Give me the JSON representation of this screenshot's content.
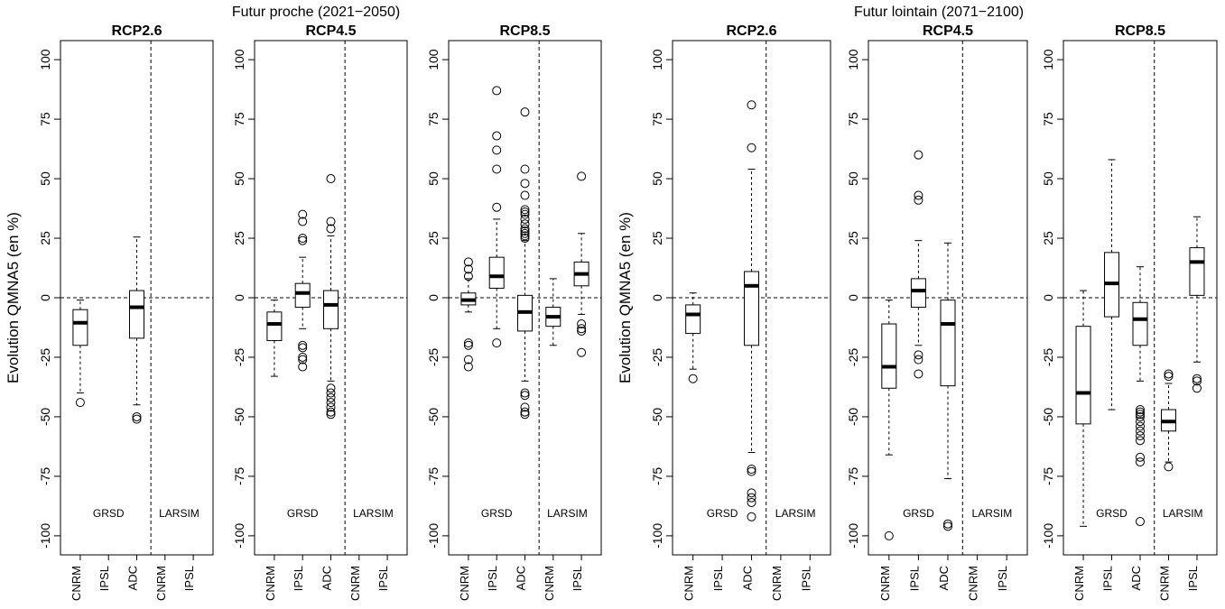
{
  "figure_titles": [
    "Futur proche (2021−2050)",
    "Futur lointain (2071−2100)"
  ],
  "chart_data": [
    {
      "type": "box",
      "title": "RCP2.6",
      "ylabel": "Evolution QMNA5 (en %)",
      "ylim": [
        -108,
        108
      ],
      "yticks": [
        -100,
        -75,
        -50,
        -25,
        0,
        25,
        50,
        75,
        100
      ],
      "reference_line": 0,
      "groups": [
        {
          "name": "GRSD",
          "categories": [
            "CNRM",
            "IPSL",
            "ADC"
          ],
          "stats": [
            {
              "low": -40,
              "q1": -20,
              "median": -10.5,
              "q3": -5,
              "high": -1,
              "outliers": [
                -44
              ]
            },
            null,
            {
              "low": -45,
              "q1": -17,
              "median": -4,
              "q3": 3,
              "high": 25.5,
              "outliers": [
                -50,
                -51
              ]
            }
          ]
        },
        {
          "name": "LARSIM",
          "categories": [
            "CNRM",
            "IPSL"
          ],
          "stats": [
            null,
            null
          ]
        }
      ]
    },
    {
      "type": "box",
      "title": "RCP4.5",
      "ylim": [
        -108,
        108
      ],
      "yticks": [
        -100,
        -75,
        -50,
        -25,
        0,
        25,
        50,
        75,
        100
      ],
      "reference_line": 0,
      "groups": [
        {
          "name": "GRSD",
          "categories": [
            "CNRM",
            "IPSL",
            "ADC"
          ],
          "stats": [
            {
              "low": -33,
              "q1": -18,
              "median": -11,
              "q3": -6,
              "high": -1,
              "outliers": []
            },
            {
              "low": -13,
              "q1": -4,
              "median": 2,
              "q3": 6,
              "high": 17,
              "outliers": [
                35,
                32,
                25,
                24,
                -20,
                -21,
                -25,
                -26,
                -29
              ]
            },
            {
              "low": -35,
              "q1": -13,
              "median": -3,
              "q3": 3,
              "high": 26,
              "outliers": [
                50,
                32,
                29,
                -38,
                -40,
                -42,
                -44,
                -46,
                -48,
                -49
              ]
            }
          ]
        },
        {
          "name": "LARSIM",
          "categories": [
            "CNRM",
            "IPSL"
          ],
          "stats": [
            null,
            null
          ]
        }
      ]
    },
    {
      "type": "box",
      "title": "RCP8.5",
      "ylim": [
        -108,
        108
      ],
      "yticks": [
        -100,
        -75,
        -50,
        -25,
        0,
        25,
        50,
        75,
        100
      ],
      "reference_line": 0,
      "groups": [
        {
          "name": "GRSD",
          "categories": [
            "CNRM",
            "IPSL",
            "ADC"
          ],
          "stats": [
            {
              "low": -6,
              "q1": -3,
              "median": -1,
              "q3": 2,
              "high": 8,
              "outliers": [
                15,
                12,
                9,
                -19,
                -20,
                -26,
                -29
              ]
            },
            {
              "low": -13,
              "q1": 4,
              "median": 9,
              "q3": 17,
              "high": 33,
              "outliers": [
                87,
                68,
                62,
                54,
                38,
                -19
              ]
            },
            {
              "low": -35,
              "q1": -14,
              "median": -6,
              "q3": 1,
              "high": 24,
              "outliers": [
                78,
                54,
                48,
                43,
                37,
                36,
                35,
                33,
                31,
                29,
                28,
                27,
                26,
                25,
                -40,
                -41,
                -46,
                -48,
                -49
              ]
            }
          ]
        },
        {
          "name": "LARSIM",
          "categories": [
            "CNRM",
            "IPSL"
          ],
          "stats": [
            {
              "low": -20,
              "q1": -12,
              "median": -8,
              "q3": -4,
              "high": 8,
              "outliers": []
            },
            {
              "low": -7,
              "q1": 5,
              "median": 10,
              "q3": 15,
              "high": 27,
              "outliers": [
                51,
                -11,
                -13,
                -14,
                -23
              ]
            }
          ]
        }
      ]
    },
    {
      "type": "box",
      "title": "RCP2.6",
      "ylabel": "Evolution QMNA5 (en %)",
      "ylim": [
        -108,
        108
      ],
      "yticks": [
        -100,
        -75,
        -50,
        -25,
        0,
        25,
        50,
        75,
        100
      ],
      "reference_line": 0,
      "groups": [
        {
          "name": "GRSD",
          "categories": [
            "CNRM",
            "IPSL",
            "ADC"
          ],
          "stats": [
            {
              "low": -30,
              "q1": -15,
              "median": -7,
              "q3": -3,
              "high": 2,
              "outliers": [
                -34
              ]
            },
            null,
            {
              "low": -65,
              "q1": -20,
              "median": 5,
              "q3": 11,
              "high": 54,
              "outliers": [
                81,
                63,
                -72,
                -73,
                -82,
                -84,
                -86,
                -92
              ]
            }
          ]
        },
        {
          "name": "LARSIM",
          "categories": [
            "CNRM",
            "IPSL"
          ],
          "stats": [
            null,
            null
          ]
        }
      ]
    },
    {
      "type": "box",
      "title": "RCP4.5",
      "ylim": [
        -108,
        108
      ],
      "yticks": [
        -100,
        -75,
        -50,
        -25,
        0,
        25,
        50,
        75,
        100
      ],
      "reference_line": 0,
      "groups": [
        {
          "name": "GRSD",
          "categories": [
            "CNRM",
            "IPSL",
            "ADC"
          ],
          "stats": [
            {
              "low": -66,
              "q1": -38,
              "median": -29,
              "q3": -11,
              "high": -1,
              "outliers": [
                -100
              ]
            },
            {
              "low": -20,
              "q1": -4,
              "median": 3,
              "q3": 8,
              "high": 24,
              "outliers": [
                60,
                43,
                41,
                -24,
                -26,
                -32
              ]
            },
            {
              "low": -76,
              "q1": -37,
              "median": -11,
              "q3": -1,
              "high": 23,
              "outliers": [
                -95,
                -96
              ]
            }
          ]
        },
        {
          "name": "LARSIM",
          "categories": [
            "CNRM",
            "IPSL"
          ],
          "stats": [
            null,
            null
          ]
        }
      ]
    },
    {
      "type": "box",
      "title": "RCP8.5",
      "ylim": [
        -108,
        108
      ],
      "yticks": [
        -100,
        -75,
        -50,
        -25,
        0,
        25,
        50,
        75,
        100
      ],
      "reference_line": 0,
      "groups": [
        {
          "name": "GRSD",
          "categories": [
            "CNRM",
            "IPSL",
            "ADC"
          ],
          "stats": [
            {
              "low": -96,
              "q1": -53,
              "median": -40,
              "q3": -12,
              "high": 3,
              "outliers": []
            },
            {
              "low": -47,
              "q1": -8,
              "median": 6,
              "q3": 19,
              "high": 58,
              "outliers": []
            },
            {
              "low": -35,
              "q1": -20,
              "median": -9,
              "q3": -2,
              "high": 13,
              "outliers": [
                -47,
                -48,
                -49,
                -50,
                -52,
                -54,
                -56,
                -58,
                -60,
                -67,
                -69,
                -94
              ]
            }
          ]
        },
        {
          "name": "LARSIM",
          "categories": [
            "CNRM",
            "IPSL"
          ],
          "stats": [
            {
              "low": -69,
              "q1": -56,
              "median": -52,
              "q3": -47,
              "high": -36,
              "outliers": [
                -32,
                -33,
                -71
              ]
            },
            {
              "low": -27,
              "q1": 1,
              "median": 15,
              "q3": 21,
              "high": 34,
              "outliers": [
                -34,
                -35,
                -38
              ]
            }
          ]
        }
      ]
    }
  ]
}
